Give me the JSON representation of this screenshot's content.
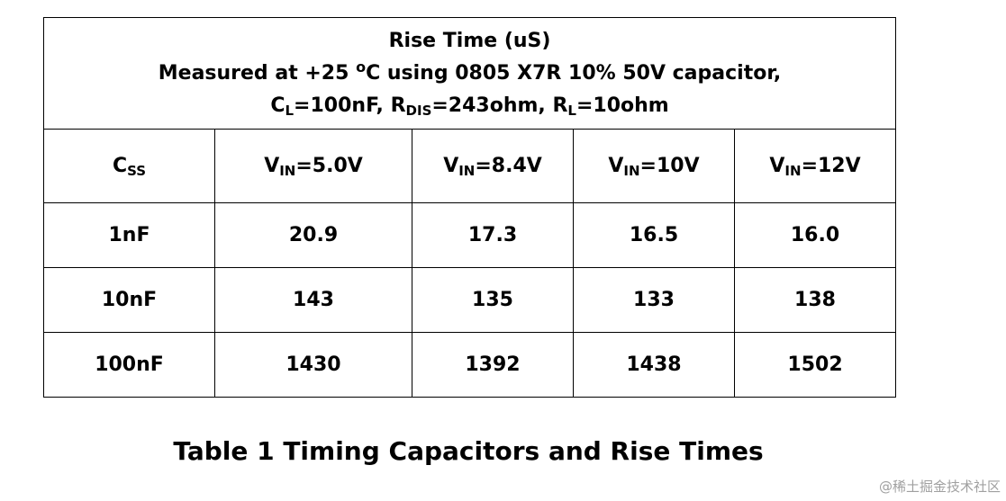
{
  "table": {
    "title": {
      "line1": "Rise Time (uS)",
      "line2_pre": "Measured at +25 ",
      "line2_degree": "o",
      "line2_post": "C using 0805 X7R 10% 50V capacitor,",
      "line3": {
        "cl_base": "C",
        "cl_sub": "L",
        "cl_val": "=100nF, ",
        "rdis_base": "R",
        "rdis_sub": "DIS",
        "rdis_val": "=243ohm, ",
        "rl_base": "R",
        "rl_sub": "L",
        "rl_val": "=10ohm"
      }
    },
    "header": {
      "css_base": "C",
      "css_sub": "SS",
      "columns": [
        {
          "base": "V",
          "sub": "IN",
          "rest": "=5.0V"
        },
        {
          "base": "V",
          "sub": "IN",
          "rest": "=8.4V"
        },
        {
          "base": "V",
          "sub": "IN",
          "rest": "=10V"
        },
        {
          "base": "V",
          "sub": "IN",
          "rest": "=12V"
        }
      ]
    },
    "rows": [
      {
        "css": "1nF",
        "values": [
          "20.9",
          "17.3",
          "16.5",
          "16.0"
        ]
      },
      {
        "css": "10nF",
        "values": [
          "143",
          "135",
          "133",
          "138"
        ]
      },
      {
        "css": "100nF",
        "values": [
          "1430",
          "1392",
          "1438",
          "1502"
        ]
      }
    ]
  },
  "caption": "Table 1 Timing Capacitors and Rise Times",
  "watermark": "@稀土掘金技术社区"
}
